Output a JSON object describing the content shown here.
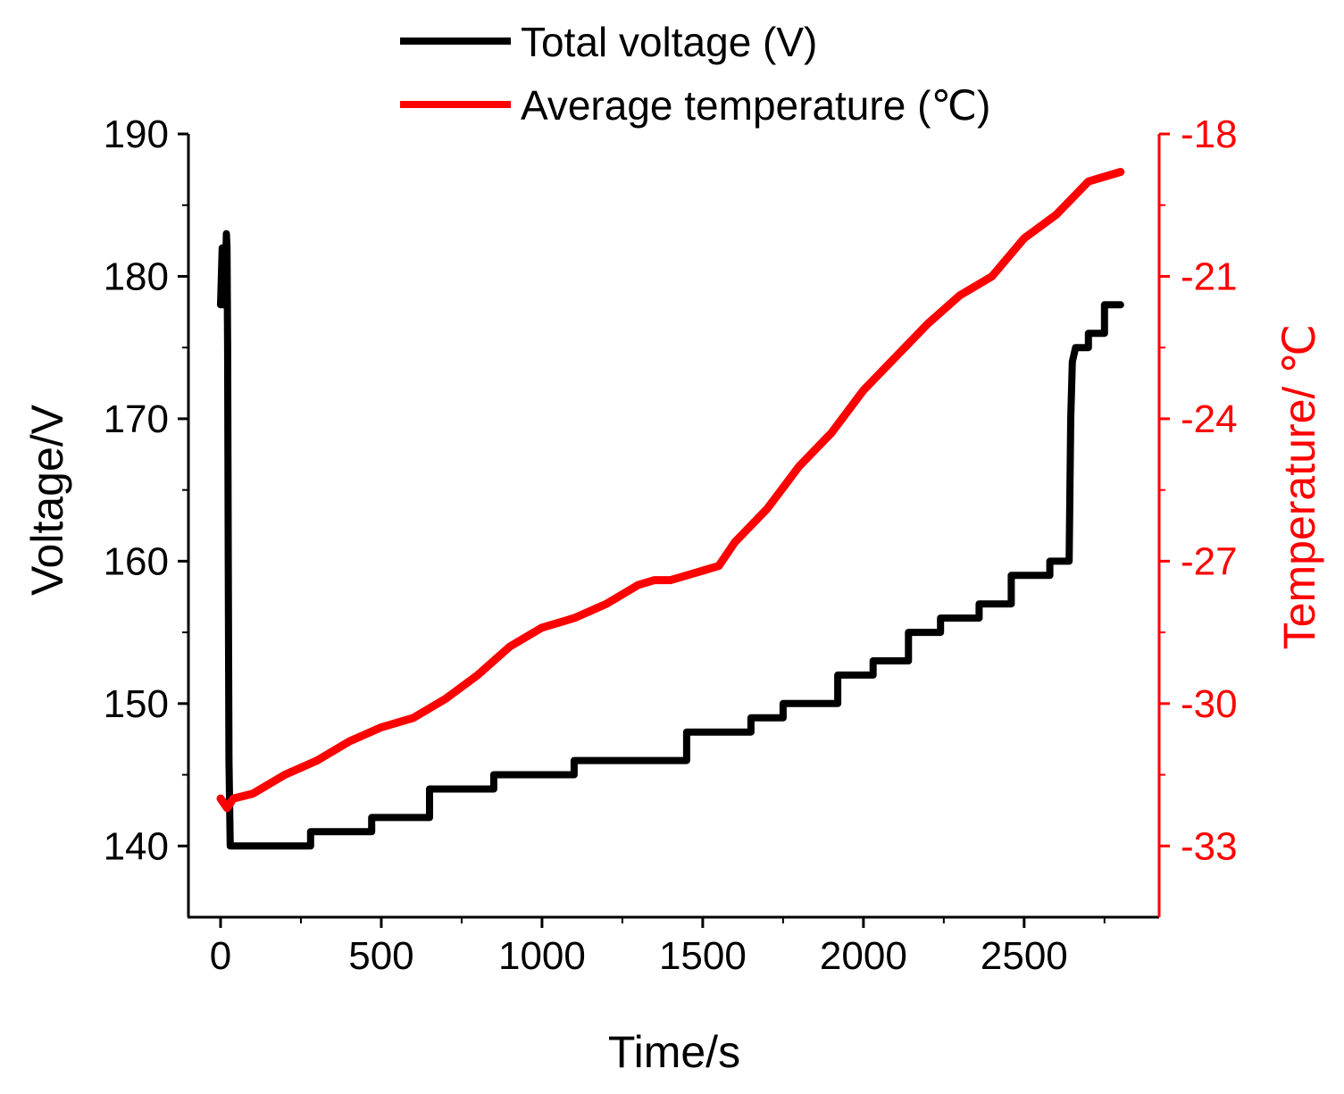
{
  "chart_data": {
    "type": "line",
    "title": "",
    "xlabel": "Time/s",
    "ylabel_left": "Voltage/V",
    "ylabel_right": "Temperature/ ℃",
    "xlim": [
      -100,
      2920
    ],
    "ylim_left": [
      135,
      190
    ],
    "ylim_right": [
      -34.5,
      -18
    ],
    "x_ticks": [
      0,
      500,
      1000,
      1500,
      2000,
      2500
    ],
    "x_tick_labels": [
      "0",
      "500",
      "1000",
      "1500",
      "2000",
      "2500"
    ],
    "y_left_ticks": [
      140,
      150,
      160,
      170,
      180,
      190
    ],
    "y_left_tick_labels": [
      "140",
      "150",
      "160",
      "170",
      "180",
      "190"
    ],
    "y_right_ticks": [
      -33,
      -30,
      -27,
      -24,
      -21,
      -18
    ],
    "y_right_tick_labels": [
      "-33",
      "-30",
      "-27",
      "-24",
      "-21",
      "-18"
    ],
    "grid": false,
    "legend_position": "top-center",
    "series": [
      {
        "name": "Total voltage (V)",
        "axis": "left",
        "color": "#000000",
        "x": [
          0,
          5,
          8,
          10,
          12,
          14,
          16,
          18,
          20,
          22,
          24,
          26,
          30,
          280,
          280,
          320,
          320,
          470,
          470,
          650,
          650,
          850,
          850,
          1100,
          1100,
          1450,
          1450,
          1500,
          1500,
          1650,
          1650,
          1750,
          1750,
          1920,
          1920,
          2030,
          2030,
          2140,
          2140,
          2240,
          2240,
          2360,
          2360,
          2460,
          2460,
          2580,
          2580,
          2640,
          2645,
          2650,
          2660,
          2700,
          2700,
          2750,
          2750,
          2800
        ],
        "y": [
          178,
          182,
          178,
          182,
          179,
          182,
          181,
          183,
          182,
          175,
          160,
          146,
          140,
          140,
          141,
          141,
          141,
          141,
          142,
          142,
          144,
          144,
          145,
          145,
          146,
          146,
          148,
          148,
          148,
          148,
          149,
          149,
          150,
          150,
          152,
          152,
          153,
          153,
          155,
          155,
          156,
          156,
          157,
          157,
          159,
          159,
          160,
          160,
          170,
          174,
          175,
          175,
          176,
          176,
          178,
          178
        ]
      },
      {
        "name": "Average temperature (℃)",
        "axis": "right",
        "color": "#ff0000",
        "x": [
          0,
          20,
          40,
          100,
          200,
          300,
          400,
          500,
          600,
          700,
          800,
          900,
          1000,
          1100,
          1200,
          1300,
          1350,
          1400,
          1500,
          1550,
          1600,
          1700,
          1800,
          1900,
          2000,
          2100,
          2200,
          2300,
          2400,
          2500,
          2600,
          2700,
          2800
        ],
        "y": [
          -32.0,
          -32.2,
          -32.0,
          -31.9,
          -31.5,
          -31.2,
          -30.8,
          -30.5,
          -30.3,
          -29.9,
          -29.4,
          -28.8,
          -28.4,
          -28.2,
          -27.9,
          -27.5,
          -27.4,
          -27.4,
          -27.2,
          -27.1,
          -26.6,
          -25.9,
          -25.0,
          -24.3,
          -23.4,
          -22.7,
          -22.0,
          -21.4,
          -21.0,
          -20.2,
          -19.7,
          -19.0,
          -18.8
        ]
      }
    ]
  }
}
